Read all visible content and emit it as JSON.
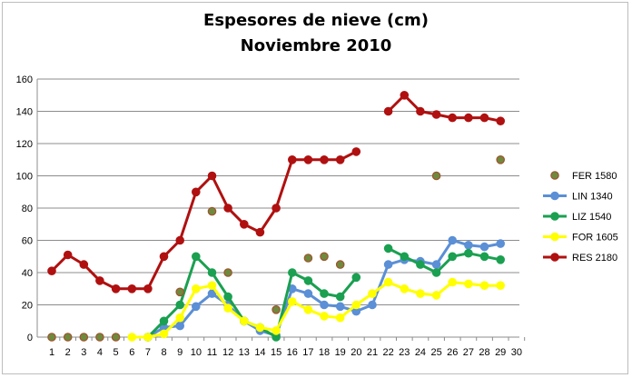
{
  "chart_data": {
    "type": "line",
    "title": "Espesores de nieve (cm)",
    "subtitle": "Noviembre 2010",
    "xlabel": "",
    "ylabel": "",
    "x": [
      1,
      2,
      3,
      4,
      5,
      6,
      7,
      8,
      9,
      10,
      11,
      12,
      13,
      14,
      15,
      16,
      17,
      18,
      19,
      20,
      21,
      22,
      23,
      24,
      25,
      26,
      27,
      28,
      29,
      30
    ],
    "xlim": [
      1,
      30
    ],
    "ylim": [
      0,
      160
    ],
    "yticks": [
      0,
      20,
      40,
      60,
      80,
      100,
      120,
      140,
      160
    ],
    "grid": true,
    "legend_position": "right",
    "series": [
      {
        "name": "FER 1580",
        "color": "#a0522d",
        "fill": "#6e8a3c",
        "lines": false,
        "values": [
          0,
          0,
          0,
          0,
          0,
          null,
          null,
          null,
          28,
          null,
          78,
          40,
          null,
          null,
          17,
          null,
          49,
          50,
          45,
          null,
          null,
          null,
          null,
          null,
          100,
          null,
          null,
          null,
          110,
          null
        ]
      },
      {
        "name": "LIN 1340",
        "color": "#5b8fd6",
        "fill": "#5b8fd6",
        "lines": true,
        "values": [
          null,
          null,
          null,
          null,
          null,
          null,
          0,
          6,
          7,
          19,
          27,
          20,
          10,
          4,
          1,
          30,
          27,
          20,
          19,
          16,
          20,
          45,
          48,
          47,
          45,
          60,
          57,
          56,
          58,
          null
        ]
      },
      {
        "name": "LIZ 1540",
        "color": "#1aa050",
        "fill": "#1aa050",
        "lines": true,
        "values": [
          null,
          null,
          null,
          null,
          null,
          null,
          0,
          10,
          20,
          50,
          40,
          25,
          10,
          6,
          0,
          40,
          35,
          27,
          25,
          37,
          null,
          55,
          50,
          45,
          40,
          50,
          52,
          50,
          48,
          null
        ]
      },
      {
        "name": "FOR 1605",
        "color": "#ffff00",
        "fill": "#ffff00",
        "lines": true,
        "values": [
          null,
          null,
          null,
          null,
          null,
          0,
          0,
          2,
          12,
          30,
          32,
          18,
          10,
          6,
          4,
          22,
          17,
          13,
          12,
          20,
          27,
          34,
          30,
          27,
          26,
          34,
          33,
          32,
          32,
          null
        ]
      },
      {
        "name": "RES 2180",
        "color": "#b01010",
        "fill": "#b01010",
        "lines": true,
        "values": [
          41,
          51,
          45,
          35,
          30,
          30,
          30,
          50,
          60,
          90,
          100,
          80,
          70,
          65,
          80,
          110,
          110,
          110,
          110,
          115,
          null,
          140,
          150,
          140,
          138,
          136,
          136,
          136,
          134,
          null
        ]
      }
    ]
  }
}
